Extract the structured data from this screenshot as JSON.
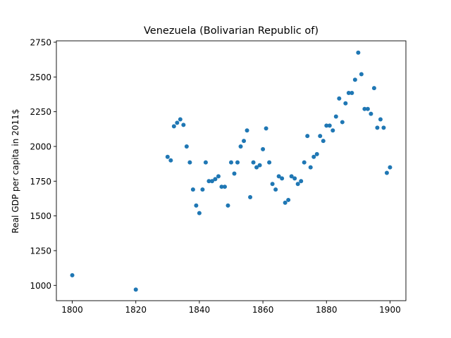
{
  "chart_data": {
    "type": "scatter",
    "title": "Venezuela (Bolivarian Republic of)",
    "xlabel": "",
    "ylabel": "Real GDP per capita in 2011$",
    "xlim": [
      1795,
      1905
    ],
    "ylim": [
      890,
      2760
    ],
    "xticks": [
      1800,
      1820,
      1840,
      1860,
      1880,
      1900
    ],
    "yticks": [
      1000,
      1250,
      1500,
      1750,
      2000,
      2250,
      2500,
      2750
    ],
    "xtick_labels": [
      "1800",
      "1820",
      "1840",
      "1860",
      "1880",
      "1900"
    ],
    "ytick_labels": [
      "1000",
      "1250",
      "1500",
      "1750",
      "2000",
      "2250",
      "2500",
      "2750"
    ],
    "grid": false,
    "marker_color": "#1f77b4",
    "series": [
      {
        "points": [
          [
            1800,
            1073
          ],
          [
            1820,
            970
          ],
          [
            1830,
            1925
          ],
          [
            1831,
            1900
          ],
          [
            1832,
            2145
          ],
          [
            1833,
            2170
          ],
          [
            1834,
            2195
          ],
          [
            1835,
            2155
          ],
          [
            1836,
            2000
          ],
          [
            1837,
            1885
          ],
          [
            1838,
            1690
          ],
          [
            1839,
            1575
          ],
          [
            1840,
            1520
          ],
          [
            1841,
            1690
          ],
          [
            1842,
            1885
          ],
          [
            1843,
            1750
          ],
          [
            1844,
            1750
          ],
          [
            1845,
            1765
          ],
          [
            1846,
            1785
          ],
          [
            1847,
            1710
          ],
          [
            1848,
            1710
          ],
          [
            1849,
            1575
          ],
          [
            1850,
            1885
          ],
          [
            1851,
            1805
          ],
          [
            1852,
            1885
          ],
          [
            1853,
            2000
          ],
          [
            1854,
            2040
          ],
          [
            1855,
            2115
          ],
          [
            1856,
            1635
          ],
          [
            1857,
            1885
          ],
          [
            1858,
            1850
          ],
          [
            1859,
            1865
          ],
          [
            1860,
            1980
          ],
          [
            1861,
            2130
          ],
          [
            1862,
            1885
          ],
          [
            1863,
            1730
          ],
          [
            1864,
            1690
          ],
          [
            1865,
            1785
          ],
          [
            1866,
            1770
          ],
          [
            1867,
            1595
          ],
          [
            1868,
            1615
          ],
          [
            1869,
            1785
          ],
          [
            1870,
            1770
          ],
          [
            1871,
            1730
          ],
          [
            1872,
            1750
          ],
          [
            1873,
            1885
          ],
          [
            1874,
            2075
          ],
          [
            1875,
            1850
          ],
          [
            1876,
            1925
          ],
          [
            1877,
            1945
          ],
          [
            1878,
            2075
          ],
          [
            1879,
            2040
          ],
          [
            1880,
            2150
          ],
          [
            1881,
            2150
          ],
          [
            1882,
            2115
          ],
          [
            1883,
            2215
          ],
          [
            1884,
            2345
          ],
          [
            1885,
            2175
          ],
          [
            1886,
            2310
          ],
          [
            1887,
            2385
          ],
          [
            1888,
            2385
          ],
          [
            1889,
            2480
          ],
          [
            1890,
            2675
          ],
          [
            1891,
            2520
          ],
          [
            1892,
            2270
          ],
          [
            1893,
            2270
          ],
          [
            1894,
            2235
          ],
          [
            1895,
            2420
          ],
          [
            1896,
            2135
          ],
          [
            1897,
            2195
          ],
          [
            1898,
            2135
          ],
          [
            1899,
            1810
          ],
          [
            1900,
            1850
          ]
        ]
      }
    ]
  }
}
